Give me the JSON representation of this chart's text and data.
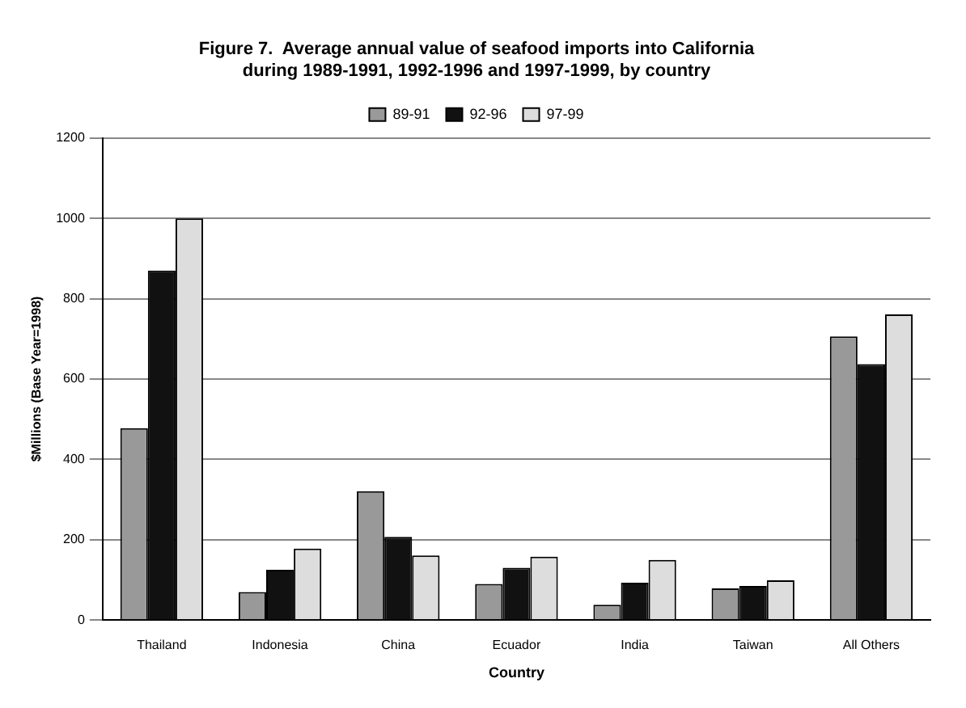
{
  "chart_data": {
    "type": "bar",
    "title": [
      "Figure 7.  Average annual value of seafood imports into California",
      "during 1989-1991, 1992-1996 and 1997-1999, by country"
    ],
    "xlabel": "Country",
    "ylabel": "$Millions (Base Year=1998)",
    "categories": [
      "Thailand",
      "Indonesia",
      "China",
      "Ecuador",
      "India",
      "Taiwan",
      "All Others"
    ],
    "series": [
      {
        "name": "89-91",
        "color": "#999999",
        "values": [
          478,
          70,
          321,
          90,
          38,
          79,
          706
        ]
      },
      {
        "name": "92-96",
        "color": "#111111",
        "values": [
          870,
          125,
          207,
          130,
          93,
          85,
          637
        ]
      },
      {
        "name": "97-99",
        "color": "#dddddd",
        "values": [
          1000,
          178,
          161,
          158,
          150,
          99,
          761
        ]
      }
    ],
    "ylim": [
      0,
      1200
    ],
    "yticks": [
      0,
      200,
      400,
      600,
      800,
      1000,
      1200
    ],
    "grid": "y",
    "legend": "top"
  }
}
